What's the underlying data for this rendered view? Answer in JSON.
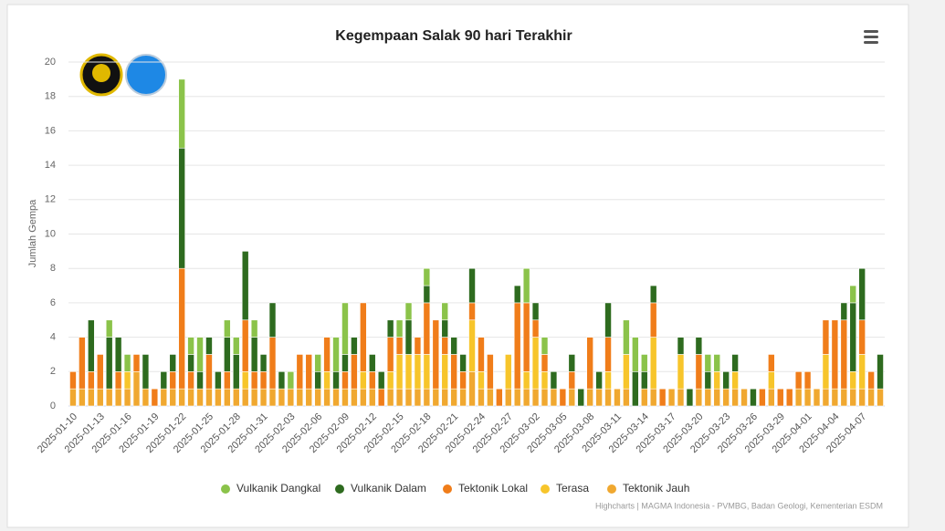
{
  "chart_data": {
    "type": "stacked_bar",
    "title": "Kegempaan Salak 90 hari Terakhir",
    "y_label": "Jumlah Gempa",
    "credits": "Highcharts | MAGMA Indonesia - PVMBG, Badan Geologi, Kementerian ESDM",
    "categories": [
      "2025-01-10",
      null,
      null,
      "2025-01-13",
      null,
      null,
      "2025-01-16",
      null,
      null,
      "2025-01-19",
      null,
      null,
      "2025-01-22",
      null,
      null,
      "2025-01-25",
      null,
      null,
      "2025-01-28",
      null,
      null,
      "2025-01-31",
      null,
      null,
      "2025-02-03",
      null,
      null,
      "2025-02-06",
      null,
      null,
      "2025-02-09",
      null,
      null,
      "2025-02-12",
      null,
      null,
      "2025-02-15",
      null,
      null,
      "2025-02-18",
      null,
      null,
      "2025-02-21",
      null,
      null,
      "2025-02-24",
      null,
      null,
      "2025-02-27",
      null,
      null,
      "2025-03-02",
      null,
      null,
      "2025-03-05",
      null,
      null,
      "2025-03-08",
      null,
      null,
      "2025-03-11",
      null,
      null,
      "2025-03-14",
      null,
      null,
      "2025-03-17",
      null,
      null,
      "2025-03-20",
      null,
      null,
      "2025-03-23",
      null,
      null,
      "2025-03-26",
      null,
      null,
      "2025-03-29",
      null,
      null,
      "2025-04-01",
      null,
      null,
      "2025-04-04",
      null,
      null,
      "2025-04-07",
      null,
      null
    ],
    "series": [
      {
        "name": "Vulkanik Dangkal",
        "color": "#8bc34a",
        "values": [
          0,
          0,
          0,
          0,
          1,
          0,
          1,
          0,
          0,
          0,
          0,
          0,
          4,
          1,
          2,
          0,
          0,
          1,
          1,
          0,
          1,
          0,
          0,
          0,
          1,
          0,
          0,
          1,
          0,
          2,
          3,
          0,
          0,
          0,
          0,
          0,
          1,
          1,
          0,
          1,
          0,
          1,
          0,
          0,
          0,
          0,
          0,
          0,
          0,
          0,
          2,
          0,
          1,
          0,
          0,
          0,
          0,
          0,
          0,
          0,
          0,
          2,
          2,
          1,
          0,
          0,
          0,
          0,
          0,
          0,
          1,
          1,
          0,
          0,
          0,
          0,
          0,
          0,
          0,
          0,
          0,
          0,
          0,
          0,
          0,
          0,
          1,
          0,
          0,
          0
        ]
      },
      {
        "name": "Vulkanik Dalam",
        "color": "#2e6b1f",
        "values": [
          0,
          0,
          3,
          0,
          3,
          2,
          0,
          0,
          2,
          0,
          1,
          1,
          7,
          1,
          1,
          1,
          1,
          2,
          2,
          4,
          2,
          1,
          2,
          1,
          0,
          0,
          0,
          1,
          0,
          1,
          1,
          1,
          0,
          1,
          1,
          1,
          0,
          2,
          0,
          1,
          0,
          1,
          1,
          1,
          2,
          0,
          0,
          0,
          0,
          1,
          0,
          1,
          0,
          1,
          0,
          1,
          1,
          0,
          1,
          2,
          0,
          0,
          2,
          1,
          1,
          0,
          0,
          1,
          1,
          1,
          1,
          0,
          1,
          1,
          0,
          1,
          0,
          0,
          0,
          0,
          0,
          0,
          0,
          0,
          0,
          1,
          4,
          3,
          0,
          2
        ]
      },
      {
        "name": "Tektonik Lokal",
        "color": "#f07d1a",
        "values": [
          1,
          3,
          1,
          2,
          0,
          1,
          0,
          1,
          0,
          1,
          0,
          1,
          7,
          1,
          0,
          2,
          0,
          1,
          0,
          3,
          1,
          1,
          3,
          0,
          0,
          2,
          2,
          0,
          2,
          0,
          1,
          2,
          4,
          1,
          1,
          2,
          1,
          0,
          1,
          3,
          4,
          1,
          2,
          1,
          1,
          2,
          2,
          1,
          0,
          5,
          4,
          1,
          1,
          0,
          1,
          1,
          0,
          3,
          0,
          2,
          0,
          0,
          0,
          0,
          2,
          1,
          0,
          0,
          0,
          2,
          0,
          0,
          0,
          0,
          0,
          0,
          1,
          1,
          1,
          1,
          1,
          1,
          0,
          2,
          4,
          4,
          0,
          2,
          1,
          0
        ]
      },
      {
        "name": "Terasa",
        "color": "#f7c52b",
        "values": [
          0,
          0,
          0,
          0,
          0,
          0,
          1,
          0,
          0,
          0,
          0,
          0,
          0,
          0,
          0,
          0,
          0,
          0,
          0,
          1,
          0,
          0,
          0,
          0,
          0,
          0,
          0,
          0,
          1,
          0,
          0,
          0,
          1,
          0,
          0,
          1,
          2,
          2,
          2,
          2,
          0,
          2,
          0,
          0,
          3,
          1,
          0,
          0,
          2,
          0,
          1,
          3,
          1,
          0,
          0,
          0,
          0,
          0,
          0,
          1,
          0,
          2,
          0,
          0,
          3,
          0,
          0,
          2,
          0,
          0,
          0,
          1,
          0,
          1,
          0,
          0,
          0,
          1,
          0,
          0,
          0,
          0,
          0,
          2,
          0,
          0,
          1,
          2,
          0,
          0
        ]
      },
      {
        "name": "Tektonik Jauh",
        "color": "#f0a830",
        "values": [
          1,
          1,
          1,
          1,
          1,
          1,
          1,
          2,
          1,
          0,
          1,
          1,
          1,
          1,
          1,
          1,
          1,
          1,
          1,
          1,
          1,
          1,
          1,
          1,
          1,
          1,
          1,
          1,
          1,
          1,
          1,
          1,
          1,
          1,
          0,
          1,
          1,
          1,
          1,
          1,
          1,
          1,
          1,
          1,
          2,
          1,
          1,
          0,
          1,
          1,
          1,
          1,
          1,
          1,
          0,
          1,
          0,
          1,
          1,
          1,
          1,
          1,
          0,
          1,
          1,
          0,
          1,
          1,
          0,
          1,
          1,
          1,
          1,
          1,
          1,
          0,
          0,
          1,
          0,
          0,
          1,
          1,
          1,
          1,
          1,
          1,
          1,
          1,
          1,
          1
        ]
      }
    ],
    "ylim": [
      0,
      20
    ],
    "yticks": [
      0,
      2,
      4,
      6,
      8,
      10,
      12,
      14,
      16,
      18,
      20
    ],
    "grid": true
  }
}
